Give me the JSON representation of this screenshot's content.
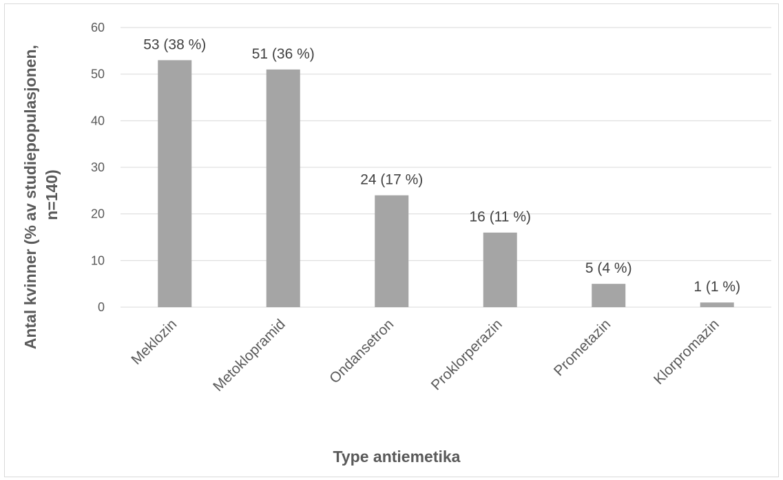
{
  "chart_data": {
    "type": "bar",
    "title": "",
    "xlabel": "Type antiemetika",
    "ylabel_lines": [
      "Antal kvinner (% av studiepopulasjonen,",
      "n=140)"
    ],
    "categories": [
      "Meklozin",
      "Metoklopramid",
      "Ondansetron",
      "Proklorperazin",
      "Prometazin",
      "Klorpromazin"
    ],
    "values": [
      53,
      51,
      24,
      16,
      5,
      1
    ],
    "data_labels": [
      "53 (38 %)",
      "51 (36 %)",
      "24 (17 %)",
      "16 (11 %)",
      "5 (4 %)",
      "1 (1 %)"
    ],
    "ylim": [
      0,
      60
    ],
    "yticks": [
      0,
      10,
      20,
      30,
      40,
      50,
      60
    ],
    "grid": true,
    "legend": "none",
    "bar_color": "#a5a5a5",
    "grid_color": "#d9d9d9",
    "text_color": "#595959"
  }
}
